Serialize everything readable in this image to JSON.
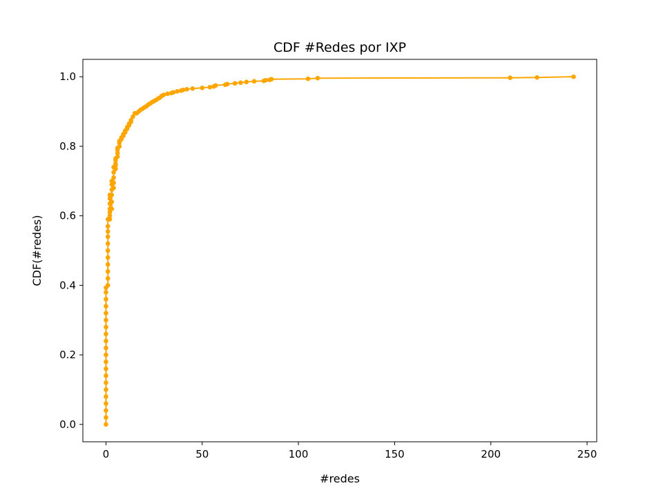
{
  "chart_data": {
    "type": "line",
    "title": "CDF #Redes por IXP",
    "xlabel": "#redes",
    "ylabel": "CDF(#redes)",
    "xlim": [
      -12,
      255
    ],
    "ylim": [
      -0.05,
      1.05
    ],
    "x_ticks": [
      0,
      50,
      100,
      150,
      200,
      250
    ],
    "x_tick_labels": [
      "0",
      "50",
      "100",
      "150",
      "200",
      "250"
    ],
    "y_ticks": [
      0.0,
      0.2,
      0.4,
      0.6,
      0.8,
      1.0
    ],
    "y_tick_labels": [
      "0.0",
      "0.2",
      "0.4",
      "0.6",
      "0.8",
      "1.0"
    ],
    "grid": false,
    "colors": {
      "series": "#ffa500",
      "axes": "#000000",
      "background": "#ffffff"
    },
    "series": [
      {
        "marker": "circle",
        "x": [
          0,
          0,
          0,
          0,
          0,
          0,
          0,
          0,
          0,
          0,
          0,
          0,
          0,
          0,
          0,
          0,
          0,
          0,
          0,
          0,
          0,
          1,
          1,
          1,
          1,
          1,
          1,
          1,
          1,
          1,
          1,
          1,
          2,
          2,
          2,
          2,
          2,
          2,
          2,
          3,
          3,
          3,
          3,
          3,
          3,
          4,
          4,
          4,
          4,
          4,
          5,
          5,
          5,
          5,
          5,
          6,
          6,
          6,
          6,
          7,
          7,
          7,
          8,
          8,
          9,
          9,
          10,
          10,
          11,
          11,
          12,
          12,
          13,
          13,
          14,
          15,
          16,
          17,
          18,
          19,
          20,
          21,
          22,
          23,
          24,
          25,
          26,
          27,
          28,
          29,
          30,
          32,
          34,
          35,
          37,
          39,
          40,
          42,
          45,
          50,
          54,
          56,
          57,
          62,
          63,
          67,
          70,
          73,
          77,
          82,
          83,
          85,
          86,
          105,
          110,
          210,
          224,
          243
        ],
        "y": [
          0.0,
          0.02,
          0.04,
          0.06,
          0.08,
          0.1,
          0.12,
          0.14,
          0.16,
          0.18,
          0.2,
          0.22,
          0.24,
          0.26,
          0.28,
          0.3,
          0.32,
          0.34,
          0.36,
          0.38,
          0.393,
          0.4,
          0.42,
          0.44,
          0.46,
          0.48,
          0.5,
          0.52,
          0.54,
          0.555,
          0.57,
          0.59,
          0.59,
          0.6,
          0.61,
          0.62,
          0.635,
          0.65,
          0.66,
          0.62,
          0.64,
          0.66,
          0.675,
          0.69,
          0.7,
          0.68,
          0.695,
          0.71,
          0.725,
          0.74,
          0.735,
          0.745,
          0.75,
          0.76,
          0.765,
          0.77,
          0.78,
          0.79,
          0.795,
          0.8,
          0.81,
          0.815,
          0.82,
          0.825,
          0.83,
          0.835,
          0.84,
          0.845,
          0.85,
          0.855,
          0.86,
          0.865,
          0.87,
          0.875,
          0.885,
          0.895,
          0.895,
          0.9,
          0.905,
          0.908,
          0.912,
          0.915,
          0.92,
          0.923,
          0.927,
          0.93,
          0.933,
          0.937,
          0.94,
          0.945,
          0.948,
          0.951,
          0.953,
          0.955,
          0.958,
          0.96,
          0.962,
          0.964,
          0.966,
          0.968,
          0.97,
          0.972,
          0.975,
          0.977,
          0.979,
          0.981,
          0.983,
          0.985,
          0.987,
          0.988,
          0.99,
          0.991,
          0.993,
          0.994,
          0.996,
          0.997,
          0.998,
          1.0
        ]
      }
    ]
  }
}
